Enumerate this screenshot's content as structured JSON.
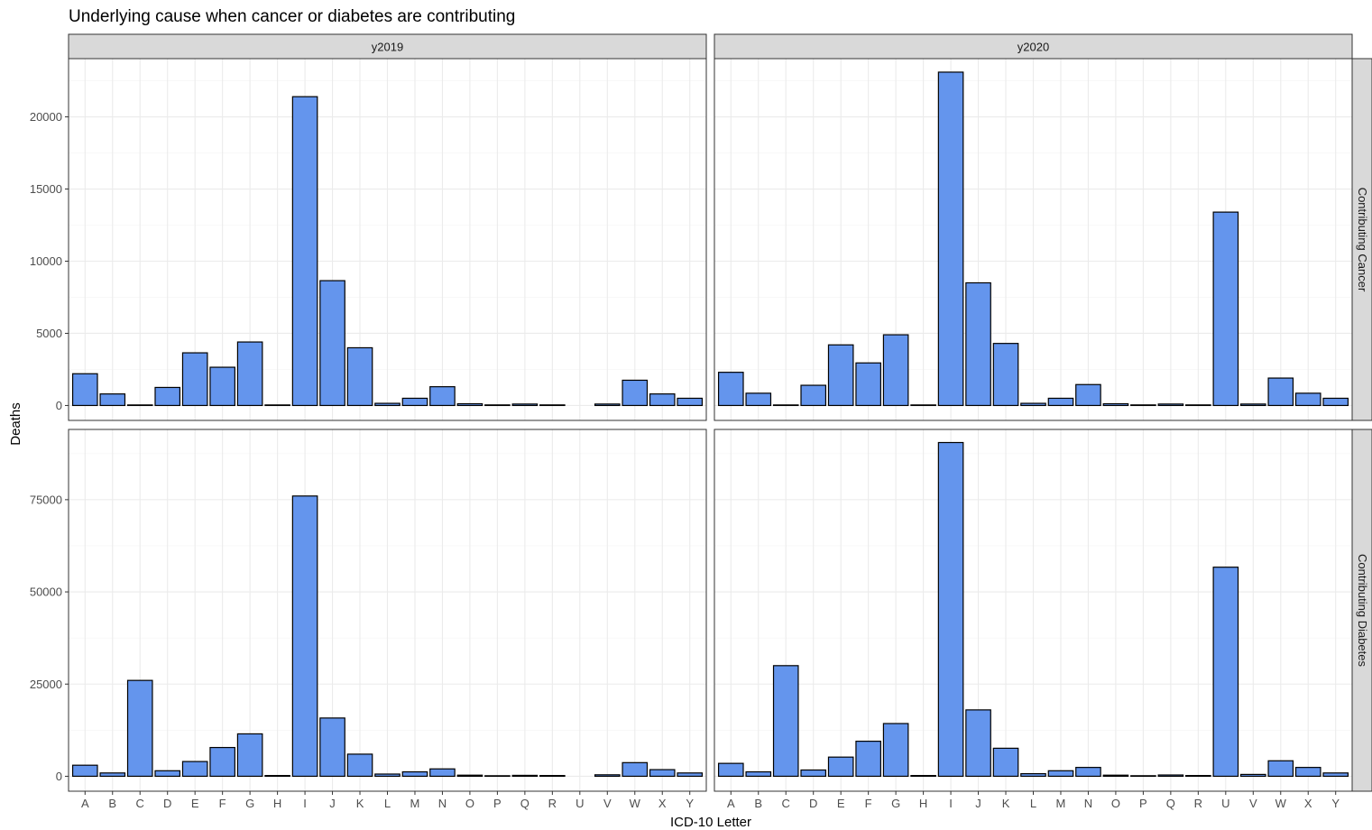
{
  "chart_data": {
    "type": "bar",
    "title": "Underlying cause when cancer or diabetes are contributing",
    "xlabel": "ICD-10 Letter",
    "ylabel": "Deaths",
    "bar_color": "#6495ED",
    "bar_outline": "#000000",
    "grid": true,
    "facet_columns": [
      "y2019",
      "y2020"
    ],
    "facet_rows": [
      "Contributing Cancer",
      "Contributing Diabetes"
    ],
    "categories": [
      "A",
      "B",
      "C",
      "D",
      "E",
      "F",
      "G",
      "H",
      "I",
      "J",
      "K",
      "L",
      "M",
      "N",
      "O",
      "P",
      "Q",
      "R",
      "U",
      "V",
      "W",
      "X",
      "Y"
    ],
    "rows": [
      {
        "label": "Contributing Cancer",
        "ylim": [
          0,
          23000
        ],
        "yticks": [
          0,
          5000,
          10000,
          15000,
          20000
        ],
        "panels": [
          {
            "column": "y2019",
            "values": [
              2200,
              800,
              0,
              1250,
              3650,
              2650,
              4400,
              20,
              21400,
              8650,
              4000,
              150,
              500,
              1300,
              120,
              40,
              100,
              40,
              0,
              100,
              1750,
              800,
              500
            ]
          },
          {
            "column": "y2020",
            "values": [
              2300,
              850,
              0,
              1400,
              4200,
              2950,
              4900,
              20,
              23100,
              8500,
              4300,
              150,
              500,
              1450,
              120,
              40,
              100,
              40,
              13400,
              100,
              1900,
              850,
              500
            ]
          }
        ]
      },
      {
        "label": "Contributing Diabetes",
        "ylim": [
          0,
          90000
        ],
        "yticks": [
          0,
          25000,
          50000,
          75000
        ],
        "panels": [
          {
            "column": "y2019",
            "values": [
              3000,
              900,
              26000,
              1500,
              4000,
              7800,
              11500,
              200,
              76000,
              15800,
              6000,
              600,
              1200,
              2000,
              300,
              100,
              250,
              200,
              0,
              400,
              3700,
              1800,
              900
            ]
          },
          {
            "column": "y2020",
            "values": [
              3500,
              1200,
              30000,
              1700,
              5200,
              9500,
              14300,
              200,
              90500,
              18000,
              7600,
              700,
              1500,
              2400,
              300,
              150,
              350,
              200,
              56700,
              500,
              4200,
              2400,
              900
            ]
          }
        ]
      }
    ]
  }
}
